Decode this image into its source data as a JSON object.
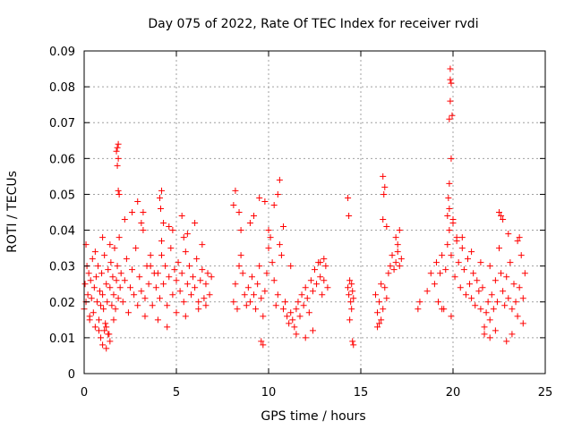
{
  "chart_data": {
    "type": "scatter",
    "title": "Day 075 of 2022, Rate Of TEC Index for receiver rvdi",
    "xlabel": "GPS time / hours",
    "ylabel": "ROTI / TECUs",
    "xlim": [
      0,
      25
    ],
    "ylim": [
      0,
      0.09
    ],
    "xticks": [
      "0",
      "5",
      "10",
      "15",
      "20",
      "25"
    ],
    "yticks": [
      "0",
      "0.01",
      "0.02",
      "0.03",
      "0.04",
      "0.05",
      "0.06",
      "0.07",
      "0.08",
      "0.09"
    ],
    "grid": true,
    "marker": "plus",
    "color": "#ff0000",
    "series": [
      {
        "x": [
          0.0,
          0.05,
          0.1,
          0.15,
          0.2,
          0.25,
          0.3,
          0.35,
          0.4,
          0.45,
          0.5,
          0.55,
          0.6,
          0.65,
          0.7,
          0.75,
          0.8,
          0.85,
          0.9,
          0.95,
          1.0,
          1.05,
          1.1,
          1.15,
          1.2,
          1.25,
          1.3,
          1.35,
          1.4,
          1.45,
          1.5,
          1.55,
          1.6,
          1.65,
          1.7,
          1.75,
          1.8,
          1.85,
          1.9,
          1.95,
          2.0,
          2.1,
          2.2,
          2.3,
          2.4,
          2.5,
          2.6,
          2.7,
          2.8,
          2.9,
          3.0,
          3.1,
          3.2,
          3.3,
          3.4,
          3.5,
          3.6,
          3.7,
          3.8,
          1.8,
          1.8,
          1.85,
          1.85,
          1.9,
          1.75,
          1.85,
          0.9,
          1.0,
          1.1,
          1.2,
          1.3,
          1.4,
          3.1,
          3.2,
          0.1,
          0.3,
          0.6,
          0.8,
          1.0,
          1.2,
          1.4,
          1.6,
          2.2,
          2.6,
          2.9,
          3.3,
          3.6
        ],
        "y": [
          0.018,
          0.025,
          0.02,
          0.03,
          0.022,
          0.028,
          0.016,
          0.026,
          0.021,
          0.032,
          0.017,
          0.024,
          0.013,
          0.027,
          0.02,
          0.03,
          0.015,
          0.023,
          0.019,
          0.028,
          0.022,
          0.018,
          0.033,
          0.014,
          0.025,
          0.02,
          0.029,
          0.011,
          0.024,
          0.031,
          0.019,
          0.027,
          0.022,
          0.035,
          0.018,
          0.026,
          0.03,
          0.021,
          0.038,
          0.024,
          0.028,
          0.02,
          0.026,
          0.032,
          0.017,
          0.024,
          0.029,
          0.022,
          0.035,
          0.019,
          0.027,
          0.023,
          0.04,
          0.021,
          0.03,
          0.025,
          0.033,
          0.019,
          0.028,
          0.063,
          0.058,
          0.064,
          0.06,
          0.05,
          0.062,
          0.051,
          0.01,
          0.008,
          0.012,
          0.007,
          0.011,
          0.009,
          0.042,
          0.045,
          0.036,
          0.015,
          0.034,
          0.012,
          0.038,
          0.013,
          0.036,
          0.015,
          0.043,
          0.045,
          0.048,
          0.016,
          0.03
        ]
      },
      {
        "x": [
          3.9,
          4.0,
          4.1,
          4.2,
          4.3,
          4.4,
          4.5,
          4.6,
          4.7,
          4.8,
          4.9,
          5.0,
          5.1,
          5.2,
          5.3,
          5.4,
          5.5,
          5.6,
          5.7,
          5.8,
          5.9,
          6.0,
          6.1,
          6.2,
          6.3,
          6.4,
          6.5,
          6.6,
          6.7,
          6.8,
          6.9,
          4.1,
          4.2,
          4.15,
          4.3,
          5.3,
          5.6,
          6.0,
          4.0,
          4.5,
          5.0,
          5.5,
          6.2,
          6.6,
          4.2,
          4.8,
          5.4,
          6.4,
          4.6
        ],
        "y": [
          0.024,
          0.028,
          0.021,
          0.033,
          0.025,
          0.03,
          0.019,
          0.027,
          0.035,
          0.022,
          0.029,
          0.026,
          0.031,
          0.023,
          0.028,
          0.02,
          0.034,
          0.025,
          0.03,
          0.022,
          0.027,
          0.024,
          0.032,
          0.02,
          0.026,
          0.029,
          0.021,
          0.025,
          0.028,
          0.022,
          0.027,
          0.049,
          0.051,
          0.046,
          0.042,
          0.044,
          0.039,
          0.042,
          0.015,
          0.013,
          0.017,
          0.016,
          0.018,
          0.019,
          0.037,
          0.04,
          0.038,
          0.036,
          0.041
        ]
      },
      {
        "x": [
          8.1,
          8.2,
          8.3,
          8.4,
          8.5,
          8.6,
          8.7,
          8.8,
          8.9,
          9.0,
          9.1,
          9.2,
          9.3,
          9.4,
          9.5,
          9.6,
          9.7,
          9.8,
          9.9,
          10.0,
          10.1,
          10.2,
          10.3,
          10.4,
          10.5,
          10.6,
          10.7,
          10.8,
          10.9,
          11.0,
          11.1,
          11.2,
          11.3,
          11.4,
          11.5,
          11.6,
          11.7,
          11.8,
          11.9,
          12.0,
          12.1,
          12.2,
          12.3,
          12.4,
          12.5,
          12.6,
          12.7,
          12.8,
          12.9,
          13.0,
          13.1,
          13.2,
          8.1,
          8.2,
          8.4,
          9.2,
          9.5,
          9.8,
          10.3,
          10.6,
          10.5,
          9.6,
          9.7,
          11.5,
          12.0,
          12.4,
          8.5,
          9.0,
          10.0,
          10.8,
          11.2,
          12.8,
          13.0
        ],
        "y": [
          0.02,
          0.025,
          0.018,
          0.03,
          0.033,
          0.028,
          0.022,
          0.019,
          0.024,
          0.02,
          0.027,
          0.022,
          0.018,
          0.025,
          0.03,
          0.021,
          0.016,
          0.023,
          0.028,
          0.035,
          0.038,
          0.031,
          0.026,
          0.019,
          0.022,
          0.036,
          0.033,
          0.018,
          0.02,
          0.016,
          0.014,
          0.017,
          0.015,
          0.013,
          0.018,
          0.02,
          0.016,
          0.022,
          0.019,
          0.024,
          0.021,
          0.017,
          0.026,
          0.023,
          0.029,
          0.025,
          0.031,
          0.027,
          0.022,
          0.026,
          0.03,
          0.024,
          0.047,
          0.051,
          0.045,
          0.044,
          0.049,
          0.048,
          0.047,
          0.054,
          0.05,
          0.009,
          0.008,
          0.011,
          0.01,
          0.012,
          0.04,
          0.042,
          0.04,
          0.041,
          0.03,
          0.031,
          0.032
        ]
      },
      {
        "x": [
          14.3,
          14.35,
          14.4,
          14.45,
          14.5,
          14.55,
          14.6,
          14.3,
          14.35,
          14.5,
          14.55,
          14.6,
          14.4
        ],
        "y": [
          0.024,
          0.022,
          0.026,
          0.02,
          0.025,
          0.023,
          0.021,
          0.049,
          0.044,
          0.018,
          0.009,
          0.008,
          0.015
        ]
      },
      {
        "x": [
          15.8,
          15.9,
          16.0,
          16.1,
          16.2,
          16.3,
          16.4,
          16.5,
          16.6,
          16.7,
          16.8,
          16.9,
          17.0,
          17.1,
          17.2,
          16.2,
          16.25,
          16.3,
          16.2,
          16.4,
          15.9,
          16.0,
          16.1,
          16.9,
          17.0,
          17.1
        ],
        "y": [
          0.022,
          0.017,
          0.02,
          0.025,
          0.018,
          0.024,
          0.021,
          0.028,
          0.03,
          0.033,
          0.029,
          0.031,
          0.034,
          0.03,
          0.032,
          0.055,
          0.05,
          0.052,
          0.043,
          0.041,
          0.013,
          0.014,
          0.015,
          0.038,
          0.036,
          0.04
        ]
      },
      {
        "x": [
          18.1,
          18.2,
          18.6,
          18.8,
          19.0,
          19.1,
          19.2,
          19.3,
          19.4,
          19.5,
          19.6,
          19.7,
          19.8,
          19.9,
          20.0,
          20.1,
          20.2,
          20.3,
          20.4,
          20.5,
          20.6,
          20.7,
          20.8,
          20.9,
          21.0,
          21.1,
          21.2,
          21.3,
          21.4,
          21.5,
          21.6,
          21.7,
          21.8,
          21.9,
          22.0,
          22.1,
          22.2,
          22.3,
          22.4,
          22.5,
          22.6,
          22.7,
          22.8,
          22.9,
          23.0,
          23.1,
          23.2,
          23.3,
          23.4,
          23.5,
          23.6,
          23.7,
          23.8,
          23.9,
          19.85,
          19.85,
          19.9,
          19.85,
          19.8,
          19.95,
          19.9,
          19.75,
          19.8,
          19.7,
          19.8,
          20.0,
          20.2,
          20.5,
          21.0,
          21.5,
          22.0,
          22.5,
          22.6,
          22.7,
          23.0,
          23.5,
          23.6,
          21.7,
          22.0,
          22.3,
          22.9,
          23.2,
          23.8,
          19.4,
          19.9
        ],
        "y": [
          0.018,
          0.02,
          0.023,
          0.028,
          0.025,
          0.031,
          0.02,
          0.028,
          0.033,
          0.018,
          0.029,
          0.036,
          0.04,
          0.033,
          0.043,
          0.027,
          0.038,
          0.031,
          0.024,
          0.035,
          0.029,
          0.022,
          0.032,
          0.025,
          0.021,
          0.028,
          0.019,
          0.026,
          0.023,
          0.018,
          0.024,
          0.013,
          0.017,
          0.02,
          0.015,
          0.022,
          0.018,
          0.026,
          0.02,
          0.035,
          0.028,
          0.023,
          0.019,
          0.027,
          0.021,
          0.031,
          0.018,
          0.025,
          0.02,
          0.016,
          0.024,
          0.033,
          0.021,
          0.028,
          0.085,
          0.082,
          0.081,
          0.076,
          0.071,
          0.072,
          0.06,
          0.049,
          0.046,
          0.044,
          0.053,
          0.042,
          0.037,
          0.038,
          0.034,
          0.031,
          0.03,
          0.045,
          0.044,
          0.043,
          0.039,
          0.037,
          0.038,
          0.011,
          0.01,
          0.012,
          0.009,
          0.011,
          0.014,
          0.018,
          0.016
        ]
      }
    ]
  }
}
